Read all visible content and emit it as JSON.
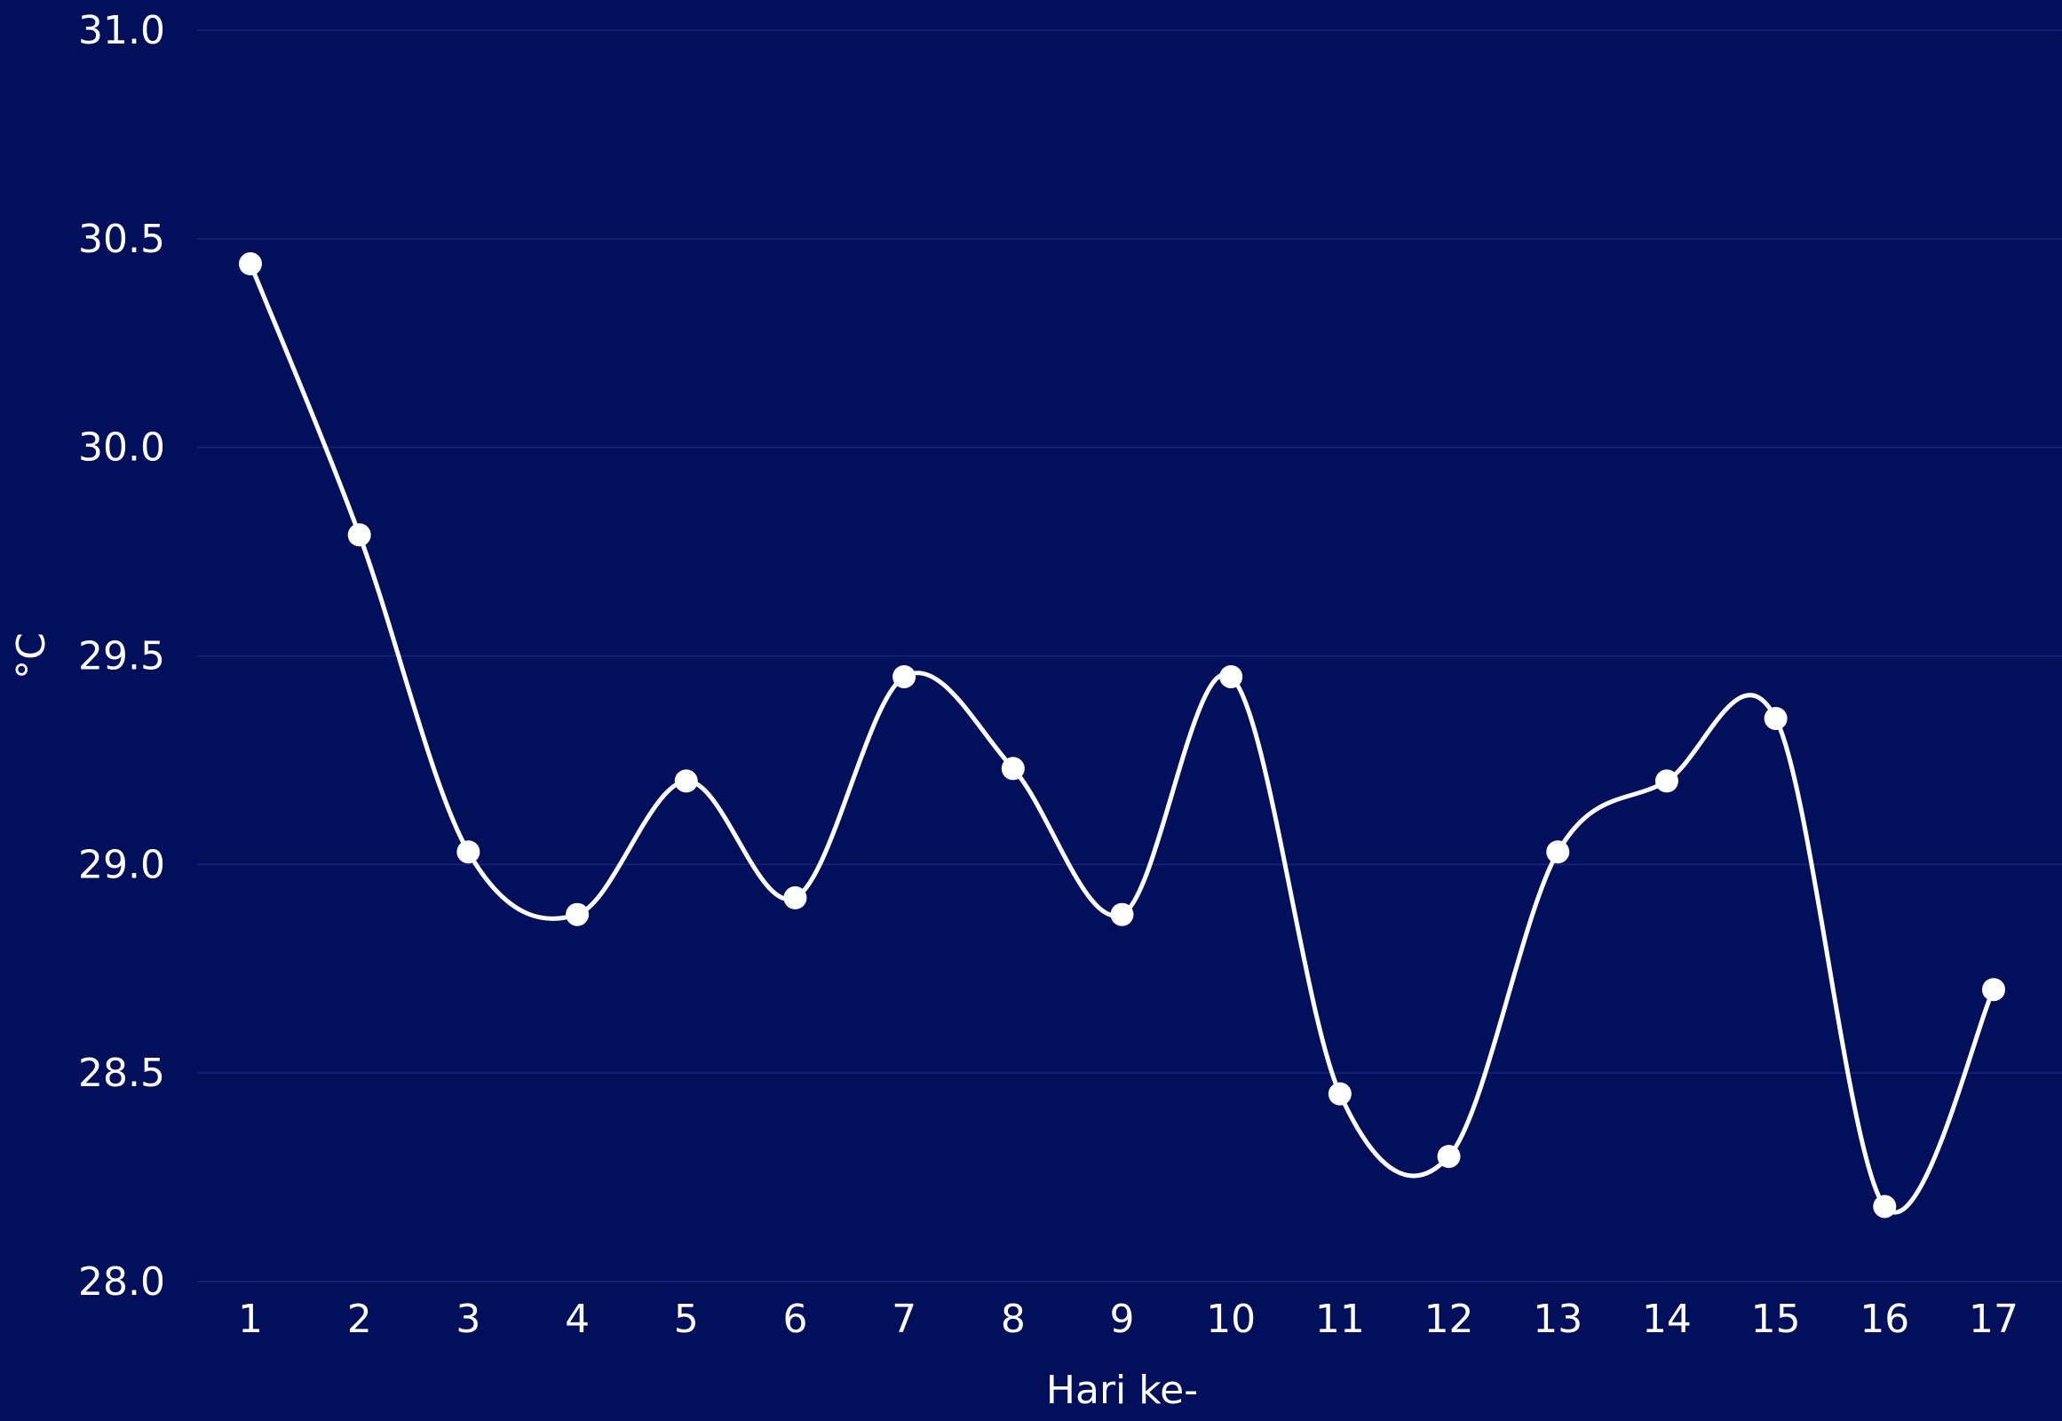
{
  "chart_data": {
    "type": "line",
    "title": "",
    "xlabel": "Hari ke-",
    "ylabel": "°C",
    "x": [
      1,
      2,
      3,
      4,
      5,
      6,
      7,
      8,
      9,
      10,
      11,
      12,
      13,
      14,
      15,
      16,
      17
    ],
    "x_tick_labels": [
      "1",
      "2",
      "3",
      "4",
      "5",
      "6",
      "7",
      "8",
      "9",
      "10",
      "11",
      "12",
      "13",
      "14",
      "15",
      "16",
      "17"
    ],
    "series": [
      {
        "values": [
          30.44,
          29.79,
          29.03,
          28.88,
          29.2,
          28.92,
          29.45,
          29.23,
          28.88,
          29.45,
          28.45,
          28.3,
          29.03,
          29.2,
          29.35,
          28.18,
          28.7
        ]
      }
    ],
    "ylim": [
      28.0,
      31.0
    ],
    "y_ticks": [
      28.0,
      28.5,
      29.0,
      29.5,
      30.0,
      30.5,
      31.0
    ],
    "y_tick_labels": [
      "28.0",
      "28.5",
      "29.0",
      "29.5",
      "30.0",
      "30.5",
      "31.0"
    ],
    "grid": true,
    "smooth": true,
    "markers": true,
    "legend": "none"
  },
  "colors": {
    "background": "#020f5b",
    "line": "#ffffff",
    "marker": "#ffffff",
    "grid": "#18267a",
    "text": "#ffffff",
    "outer_border": "#ffffff"
  }
}
